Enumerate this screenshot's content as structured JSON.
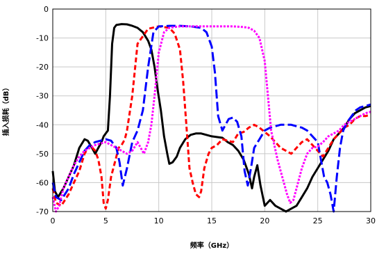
{
  "chart_data": {
    "type": "line",
    "xlabel": "频率（GHz）",
    "ylabel": "插入损耗（dB）",
    "xlim": [
      0,
      30
    ],
    "ylim": [
      -70,
      0
    ],
    "xticks": [
      "0",
      "5",
      "10",
      "15",
      "20",
      "25",
      "30"
    ],
    "yticks": [
      "0",
      "-10",
      "-20",
      "-30",
      "-40",
      "-50",
      "-60",
      "-70"
    ],
    "grid": true,
    "legend": "none",
    "series": [
      {
        "color": "#000000",
        "style": "solid",
        "x": [
          0,
          0.2,
          0.5,
          1,
          1.5,
          2,
          2.5,
          3,
          3.3,
          3.7,
          4,
          4.3,
          4.6,
          4.8,
          5,
          5.2,
          5.4,
          5.6,
          5.8,
          6,
          6.5,
          7,
          7.5,
          8,
          8.5,
          9,
          9.3,
          9.6,
          9.9,
          10.2,
          10.5,
          10.8,
          11,
          11.3,
          11.7,
          12,
          12.5,
          13,
          13.5,
          14,
          15,
          16,
          16.5,
          17,
          17.5,
          18,
          18.5,
          18.8,
          19,
          19.3,
          19.6,
          20,
          20.5,
          21,
          21.5,
          22,
          22.5,
          23,
          23.5,
          24,
          24.5,
          25,
          25.5,
          26,
          26.5,
          27,
          27.5,
          28,
          28.5,
          29,
          29.5,
          30
        ],
        "y": [
          -56,
          -63,
          -65,
          -62,
          -58,
          -54,
          -48,
          -45,
          -45.5,
          -48,
          -50,
          -48,
          -46,
          -44,
          -43,
          -42,
          -30,
          -12,
          -6.5,
          -5.5,
          -5.2,
          -5.3,
          -5.8,
          -6.5,
          -8,
          -11,
          -14,
          -20,
          -28,
          -35,
          -44,
          -50,
          -53.5,
          -53,
          -51,
          -48,
          -45,
          -43.5,
          -43,
          -43,
          -44,
          -44.5,
          -46,
          -47,
          -49,
          -52,
          -57,
          -62,
          -58,
          -54,
          -61,
          -68,
          -66,
          -68,
          -69,
          -70,
          -69,
          -68,
          -65,
          -62,
          -58,
          -55,
          -52,
          -49,
          -45,
          -43,
          -41,
          -38,
          -36,
          -35,
          -34,
          -33.5
        ]
      },
      {
        "color": "#ff0000",
        "style": "dashed",
        "x": [
          0,
          0.3,
          0.8,
          1.5,
          2,
          2.5,
          3,
          3.5,
          4,
          4.3,
          4.6,
          4.8,
          5,
          5.2,
          5.5,
          6,
          6.2,
          6.5,
          6.8,
          7,
          7.5,
          8,
          9,
          10,
          11,
          11.5,
          12,
          12.3,
          12.6,
          12.9,
          13.2,
          13.5,
          13.8,
          14,
          14.3,
          14.7,
          15,
          15.5,
          16,
          16.5,
          17,
          17.5,
          18,
          18.5,
          19,
          19.5,
          20,
          20.5,
          21,
          21.5,
          22,
          22.5,
          23,
          23.5,
          24,
          24.5,
          25,
          25.5,
          26,
          26.5,
          27,
          27.5,
          28,
          28.5,
          29,
          29.5,
          30
        ],
        "y": [
          -62,
          -67,
          -68,
          -64,
          -60,
          -56,
          -50,
          -47,
          -49,
          -52,
          -58,
          -67,
          -69,
          -66,
          -58,
          -51,
          -48,
          -47,
          -45,
          -42,
          -30,
          -12,
          -6.8,
          -6,
          -6.5,
          -8.5,
          -14,
          -25,
          -40,
          -55,
          -60,
          -64,
          -65,
          -63,
          -55,
          -50,
          -48,
          -47,
          -45,
          -45.5,
          -46,
          -43,
          -42.5,
          -41,
          -40,
          -41,
          -42.5,
          -44,
          -46,
          -48,
          -49,
          -50,
          -48,
          -46,
          -45,
          -47,
          -49,
          -51,
          -48,
          -45,
          -43,
          -41,
          -40,
          -38,
          -37,
          -37,
          -36.5
        ]
      },
      {
        "color": "#0000ff",
        "style": "long-dashed",
        "x": [
          0,
          0.3,
          0.8,
          1.5,
          2,
          2.5,
          3,
          3.5,
          4,
          4.5,
          5,
          5.5,
          6,
          6.3,
          6.6,
          7,
          7.5,
          8,
          8.5,
          9,
          9.5,
          10,
          11,
          12,
          13,
          14,
          14.5,
          15,
          15.3,
          15.6,
          16,
          16.3,
          16.6,
          17,
          17.4,
          17.8,
          18.1,
          18.4,
          18.7,
          19,
          19.5,
          20,
          20.5,
          21,
          21.5,
          22,
          22.5,
          23,
          23.5,
          24,
          24.5,
          25,
          25.3,
          25.6,
          25.9,
          26.2,
          26.5,
          26.8,
          27.1,
          27.4,
          27.8,
          28.2,
          28.6,
          29,
          29.5,
          30
        ],
        "y": [
          -60,
          -65,
          -66,
          -62,
          -57,
          -53,
          -49,
          -47,
          -46,
          -45.5,
          -45,
          -45.5,
          -48,
          -53,
          -61,
          -55,
          -46,
          -42,
          -35,
          -20,
          -8,
          -6,
          -5.8,
          -5.8,
          -6,
          -6.5,
          -8,
          -13,
          -22,
          -37,
          -42,
          -40,
          -38,
          -37.5,
          -39,
          -44,
          -56,
          -61,
          -55,
          -48,
          -45,
          -42,
          -41,
          -40.5,
          -40,
          -40,
          -40,
          -40.5,
          -41,
          -42,
          -44,
          -46,
          -52,
          -58,
          -60,
          -64,
          -70,
          -58,
          -48,
          -42,
          -39,
          -37,
          -35,
          -34,
          -33.5,
          -33
        ]
      },
      {
        "color": "#ff00ff",
        "style": "dotted",
        "x": [
          0,
          0.3,
          0.6,
          1,
          1.5,
          2,
          2.5,
          3,
          3.5,
          4,
          4.5,
          5,
          5.5,
          6,
          6.5,
          7,
          7.5,
          8,
          8.3,
          8.6,
          9,
          9.3,
          9.6,
          10,
          10.5,
          11,
          11.5,
          12,
          12.5,
          13,
          14,
          15,
          16,
          17,
          18,
          18.5,
          19,
          19.5,
          20,
          20.3,
          20.6,
          20.9,
          21.2,
          21.5,
          21.8,
          22.1,
          22.4,
          22.7,
          23,
          23.5,
          24,
          24.5,
          25,
          25.5,
          26,
          26.5,
          27,
          27.5,
          28,
          28.5,
          29,
          29.5,
          30
        ],
        "y": [
          -65,
          -70,
          -68,
          -62,
          -58,
          -54,
          -51,
          -49,
          -48,
          -47,
          -46.5,
          -46,
          -47,
          -48,
          -49,
          -50,
          -49,
          -46,
          -48,
          -50,
          -46,
          -40,
          -30,
          -15,
          -8,
          -6.5,
          -6.2,
          -6,
          -6,
          -6,
          -6,
          -6,
          -6,
          -6,
          -6.2,
          -6.5,
          -7.5,
          -10,
          -18,
          -30,
          -42,
          -47,
          -52,
          -56,
          -60,
          -64,
          -67,
          -66,
          -62,
          -55,
          -50,
          -48,
          -47.5,
          -46,
          -44,
          -43,
          -42,
          -40,
          -39,
          -38,
          -37,
          -36,
          -35.5
        ]
      }
    ]
  }
}
